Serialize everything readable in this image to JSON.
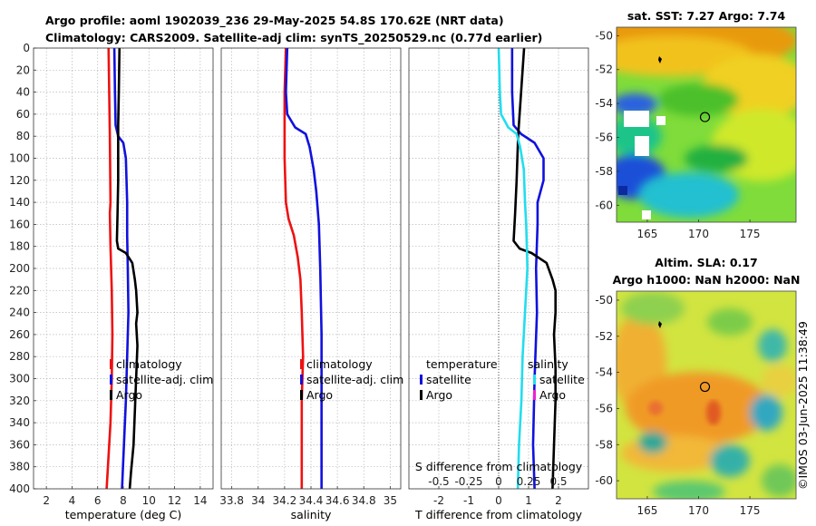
{
  "title": {
    "line1": "Argo profile: aoml 1902039_236 29-May-2025 54.8S 170.62E (NRT data)",
    "line2": "Climatology: CARS2009. Satellite-adj clim: synTS_20250529.nc (0.77d earlier)"
  },
  "copyright": "©IMOS 03-Jun-2025 11:38:49",
  "colors": {
    "climatology": "#ee1111",
    "satellite": "#1111dd",
    "argo": "#000000",
    "cyan": "#22ddee",
    "magenta": "#ee22cc"
  },
  "chart_data": [
    {
      "id": "temperature",
      "type": "line",
      "xlabel": "temperature (deg C)",
      "ylabel": "",
      "xlim": [
        1,
        15
      ],
      "ylim": [
        0,
        400
      ],
      "y_inverted": true,
      "grid": true,
      "xticks": [
        2,
        4,
        6,
        8,
        10,
        12,
        14
      ],
      "yticks": [
        0,
        20,
        40,
        60,
        80,
        100,
        120,
        140,
        160,
        180,
        200,
        220,
        240,
        260,
        280,
        300,
        320,
        340,
        360,
        380,
        400
      ],
      "legend": [
        "climatology",
        "satellite-adj. clim",
        "Argo"
      ],
      "series": [
        {
          "name": "climatology",
          "color": "#ee1111",
          "points": [
            [
              6.85,
              0
            ],
            [
              6.9,
              40
            ],
            [
              6.95,
              80
            ],
            [
              7.0,
              140
            ],
            [
              6.95,
              150
            ],
            [
              7.0,
              180
            ],
            [
              7.1,
              220
            ],
            [
              7.15,
              260
            ],
            [
              7.1,
              300
            ],
            [
              7.0,
              340
            ],
            [
              6.85,
              370
            ],
            [
              6.7,
              400
            ]
          ]
        },
        {
          "name": "satellite-adj. clim",
          "color": "#1111dd",
          "points": [
            [
              7.3,
              0
            ],
            [
              7.35,
              40
            ],
            [
              7.4,
              70
            ],
            [
              7.6,
              80
            ],
            [
              8.0,
              86
            ],
            [
              8.2,
              100
            ],
            [
              8.3,
              140
            ],
            [
              8.3,
              170
            ],
            [
              8.35,
              200
            ],
            [
              8.4,
              240
            ],
            [
              8.3,
              280
            ],
            [
              8.2,
              320
            ],
            [
              8.05,
              360
            ],
            [
              7.9,
              400
            ]
          ]
        },
        {
          "name": "Argo",
          "color": "#000000",
          "points": [
            [
              7.7,
              0
            ],
            [
              7.65,
              40
            ],
            [
              7.6,
              70
            ],
            [
              7.6,
              120
            ],
            [
              7.55,
              150
            ],
            [
              7.5,
              175
            ],
            [
              7.6,
              182
            ],
            [
              8.2,
              186
            ],
            [
              8.7,
              195
            ],
            [
              8.9,
              210
            ],
            [
              9.0,
              220
            ],
            [
              9.1,
              240
            ],
            [
              9.0,
              250
            ],
            [
              9.1,
              270
            ],
            [
              9.0,
              300
            ],
            [
              8.9,
              330
            ],
            [
              8.8,
              360
            ],
            [
              8.6,
              385
            ],
            [
              8.5,
              400
            ]
          ]
        }
      ]
    },
    {
      "id": "salinity",
      "type": "line",
      "xlabel": "salinity",
      "ylabel": "",
      "xlim": [
        33.72,
        35.08
      ],
      "ylim": [
        0,
        400
      ],
      "y_inverted": true,
      "grid": true,
      "xticks": [
        33.8,
        34,
        34.2,
        34.4,
        34.6,
        34.8,
        35
      ],
      "yticks": [
        0,
        20,
        40,
        60,
        80,
        100,
        120,
        140,
        160,
        180,
        200,
        220,
        240,
        260,
        280,
        300,
        320,
        340,
        360,
        380,
        400
      ],
      "legend": [
        "climatology",
        "satellite-adj. clim",
        "Argo"
      ],
      "series": [
        {
          "name": "climatology",
          "color": "#ee1111",
          "points": [
            [
              34.21,
              0
            ],
            [
              34.2,
              40
            ],
            [
              34.2,
              100
            ],
            [
              34.21,
              140
            ],
            [
              34.23,
              155
            ],
            [
              34.27,
              170
            ],
            [
              34.3,
              190
            ],
            [
              34.32,
              210
            ],
            [
              34.33,
              240
            ],
            [
              34.34,
              280
            ],
            [
              34.33,
              320
            ],
            [
              34.33,
              400
            ]
          ]
        },
        {
          "name": "satellite-adj. clim",
          "color": "#1111dd",
          "points": [
            [
              34.22,
              0
            ],
            [
              34.21,
              40
            ],
            [
              34.22,
              60
            ],
            [
              34.28,
              72
            ],
            [
              34.36,
              78
            ],
            [
              34.39,
              90
            ],
            [
              34.42,
              110
            ],
            [
              34.44,
              130
            ],
            [
              34.46,
              160
            ],
            [
              34.47,
              200
            ],
            [
              34.48,
              260
            ],
            [
              34.48,
              320
            ],
            [
              34.48,
              400
            ]
          ]
        },
        {
          "name": "Argo",
          "color": "#000000",
          "points": []
        }
      ]
    },
    {
      "id": "difference",
      "type": "line",
      "xlabel": "T difference from climatology",
      "x2label": "S difference from climatology",
      "ylabel": "",
      "xlim": [
        -3,
        3
      ],
      "ylim": [
        0,
        400
      ],
      "y_inverted": true,
      "grid": true,
      "xticks": [
        -2,
        -1,
        0,
        1,
        2
      ],
      "x2ticks": [
        -0.5,
        -0.25,
        0,
        0.25,
        0.5
      ],
      "x2lim": [
        -0.75,
        0.75
      ],
      "yticks": [
        0,
        20,
        40,
        60,
        80,
        100,
        120,
        140,
        160,
        180,
        200,
        220,
        240,
        260,
        280,
        300,
        320,
        340,
        360,
        380,
        400
      ],
      "legend_left_title": "temperature",
      "legend_right_title": "salinity",
      "legend_left": [
        "satellite",
        "Argo"
      ],
      "legend_right": [
        "satellite",
        "Argo"
      ],
      "series": [
        {
          "name": "T satellite",
          "color": "#1111dd",
          "points": [
            [
              0.45,
              0
            ],
            [
              0.45,
              40
            ],
            [
              0.5,
              70
            ],
            [
              0.75,
              78
            ],
            [
              1.2,
              86
            ],
            [
              1.5,
              100
            ],
            [
              1.5,
              120
            ],
            [
              1.3,
              140
            ],
            [
              1.3,
              160
            ],
            [
              1.25,
              200
            ],
            [
              1.28,
              240
            ],
            [
              1.2,
              300
            ],
            [
              1.15,
              360
            ],
            [
              1.2,
              400
            ]
          ]
        },
        {
          "name": "T Argo",
          "color": "#000000",
          "points": [
            [
              0.85,
              0
            ],
            [
              0.75,
              40
            ],
            [
              0.65,
              80
            ],
            [
              0.6,
              120
            ],
            [
              0.55,
              150
            ],
            [
              0.5,
              175
            ],
            [
              0.7,
              182
            ],
            [
              1.1,
              186
            ],
            [
              1.6,
              195
            ],
            [
              1.8,
              210
            ],
            [
              1.9,
              220
            ],
            [
              1.9,
              240
            ],
            [
              1.85,
              260
            ],
            [
              1.9,
              290
            ],
            [
              1.9,
              320
            ],
            [
              1.85,
              360
            ],
            [
              1.8,
              400
            ]
          ]
        },
        {
          "name": "S satellite",
          "color": "#22ddee",
          "points": [
            [
              0,
              0
            ],
            [
              0.01,
              40
            ],
            [
              0.02,
              60
            ],
            [
              0.08,
              72
            ],
            [
              0.15,
              78
            ],
            [
              0.18,
              90
            ],
            [
              0.21,
              110
            ],
            [
              0.22,
              140
            ],
            [
              0.23,
              160
            ],
            [
              0.24,
              200
            ],
            [
              0.22,
              240
            ],
            [
              0.2,
              280
            ],
            [
              0.19,
              320
            ],
            [
              0.17,
              360
            ],
            [
              0.16,
              400
            ]
          ]
        },
        {
          "name": "S Argo",
          "color": "#ee22cc",
          "points": []
        }
      ]
    },
    {
      "id": "sst_map",
      "type": "heatmap",
      "title": "sat. SST: 7.27 Argo: 7.74",
      "xticks": [
        165,
        170,
        175
      ],
      "yticks": [
        -50,
        -52,
        -54,
        -56,
        -58,
        -60
      ],
      "xlim": [
        162,
        179.5
      ],
      "ylim": [
        -61,
        -49.5
      ],
      "marker": {
        "lon": 170.62,
        "lat": -54.8
      }
    },
    {
      "id": "sla_map",
      "type": "heatmap",
      "title": "Altim. SLA: 0.17",
      "subtitle": "Argo h1000: NaN h2000: NaN",
      "xticks": [
        165,
        170,
        175
      ],
      "yticks": [
        -50,
        -52,
        -54,
        -56,
        -58,
        -60
      ],
      "xlim": [
        162,
        179.5
      ],
      "ylim": [
        -61,
        -49.5
      ],
      "marker": {
        "lon": 170.62,
        "lat": -54.8
      }
    }
  ]
}
